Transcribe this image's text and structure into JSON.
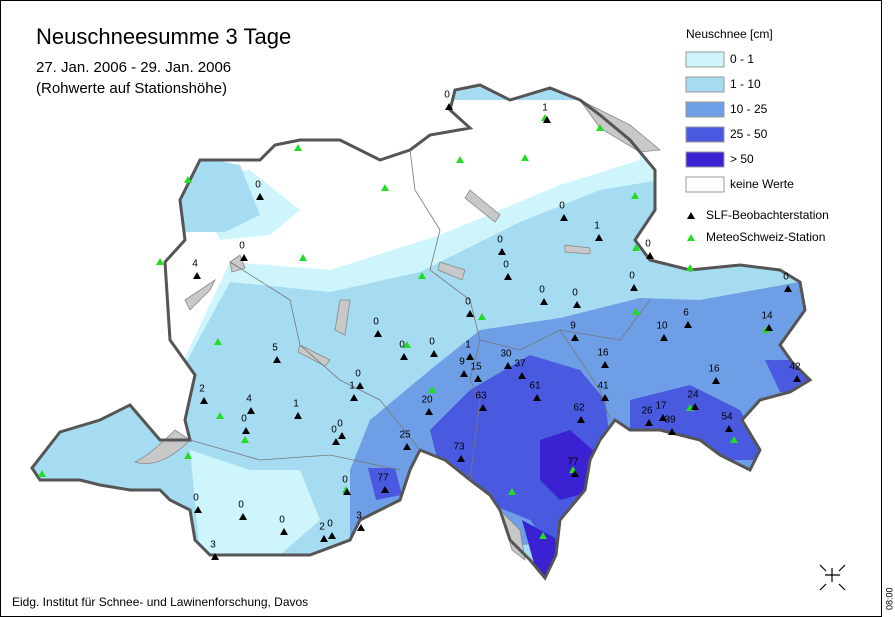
{
  "title": "Neuschneesumme 3 Tage",
  "subtitle": [
    "27. Jan. 2006 - 29. Jan. 2006",
    "(Rohwerte auf Stationshöhe)"
  ],
  "legend": {
    "title": "Neuschnee [cm]",
    "classes": [
      {
        "label": "0 - 1",
        "color": "#cdf5fb"
      },
      {
        "label": "1 - 10",
        "color": "#a6dcf1"
      },
      {
        "label": "10 - 25",
        "color": "#6e9fe6"
      },
      {
        "label": "25 - 50",
        "color": "#4a5ae0"
      },
      {
        "label": "> 50",
        "color": "#3a22d2"
      },
      {
        "label": "keine Werte",
        "color": "#ffffff"
      }
    ],
    "stations": [
      {
        "label": "SLF-Beobachterstation",
        "color": "#000000"
      },
      {
        "label": "MeteoSchweiz-Station",
        "color": "#22dd22"
      }
    ]
  },
  "station_values": [
    0,
    0,
    4,
    0,
    5,
    2,
    4,
    1,
    1,
    0,
    0,
    0,
    0,
    0,
    0,
    1,
    0,
    9,
    15,
    30,
    37,
    9,
    16,
    61,
    41,
    62,
    63,
    20,
    25,
    73,
    77,
    77,
    0,
    3,
    0,
    2,
    0,
    0,
    0,
    3,
    0,
    1,
    0,
    0,
    0,
    0,
    0,
    0,
    0,
    14,
    6,
    10,
    16,
    42,
    24,
    17,
    26,
    39,
    54,
    1,
    0
  ],
  "footer": "Eidg. Institut für Schnee- und Lawinenforschung, Davos",
  "timestamp": "08:00"
}
